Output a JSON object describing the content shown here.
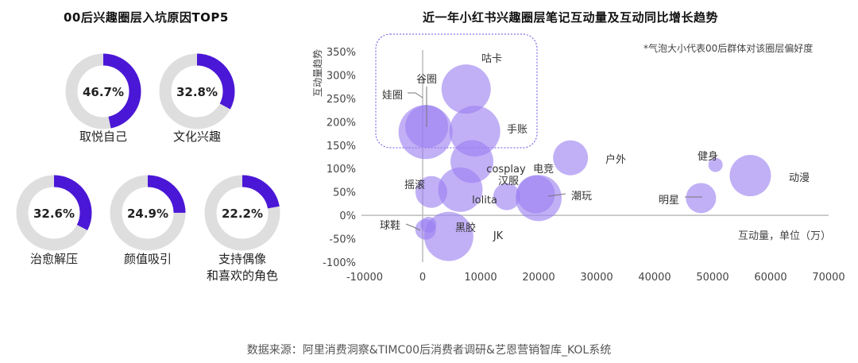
{
  "left_title": "00后兴趣圈层入坑原因TOP5",
  "donuts": [
    {
      "value": 46.7,
      "text": "46.7%",
      "label_lines": [
        "取悦自己"
      ]
    },
    {
      "value": 32.8,
      "text": "32.8%",
      "label_lines": [
        "文化兴趣"
      ]
    },
    {
      "value": 32.6,
      "text": "32.6%",
      "label_lines": [
        "治愈解压"
      ]
    },
    {
      "value": 24.9,
      "text": "24.9%",
      "label_lines": [
        "颜值吸引"
      ]
    },
    {
      "value": 22.2,
      "text": "22.2%",
      "label_lines": [
        "支持偶像",
        "和喜欢的角色"
      ]
    }
  ],
  "right_title": "近一年小红书兴趣圈层笔记互动量及互动同比增长趋势",
  "note": "*气泡大小代表00后群体对该圈层偏好度",
  "source": "数据来源：阿里消费洞察&TIMC00后消费者调研&艺恩营销智库_KOL系统",
  "colors": {
    "accent": "#4b17d6",
    "ring": "#dedede",
    "bubble": "#9b7ff0",
    "bubble_dark": "#6a4fe0"
  },
  "chart_data": {
    "type": "scatter",
    "title": "近一年小红书兴趣圈层笔记互动量及互动同比增长趋势",
    "xlabel": "互动量，单位（万）",
    "ylabel": "互动量趋势",
    "xlim": [
      -10000,
      70000
    ],
    "ylim": [
      -100,
      350
    ],
    "xticks": [
      -10000,
      0,
      10000,
      20000,
      30000,
      40000,
      50000,
      60000,
      70000
    ],
    "yticks": [
      -100,
      -50,
      0,
      50,
      100,
      150,
      200,
      250,
      300,
      350
    ],
    "xtick_labels": [
      "-10000",
      "0",
      "10000",
      "20000",
      "30000",
      "40000",
      "50000",
      "60000",
      "70000"
    ],
    "ytick_labels": [
      "-100%",
      "-50%",
      "0%",
      "50%",
      "100%",
      "150%",
      "200%",
      "250%",
      "300%",
      "350%"
    ],
    "points": [
      {
        "name": "咕卡",
        "x": 7500,
        "y": 270,
        "size": 31
      },
      {
        "name": "谷圈",
        "x": 700,
        "y": 190,
        "size": 27
      },
      {
        "name": "娃圈",
        "x": 500,
        "y": 178,
        "size": 34
      },
      {
        "name": "手账",
        "x": 9000,
        "y": 180,
        "size": 32
      },
      {
        "name": "cosplay",
        "x": 8500,
        "y": 115,
        "size": 27
      },
      {
        "name": "户外",
        "x": 25500,
        "y": 123,
        "size": 22
      },
      {
        "name": "健身",
        "x": 50500,
        "y": 108,
        "size": 9
      },
      {
        "name": "动漫",
        "x": 56500,
        "y": 85,
        "size": 26
      },
      {
        "name": "摇滚",
        "x": 1500,
        "y": 50,
        "size": 20
      },
      {
        "name": "lolita",
        "x": 6500,
        "y": 55,
        "size": 28
      },
      {
        "name": "汉服",
        "x": 14500,
        "y": 40,
        "size": 17
      },
      {
        "name": "电竞",
        "x": 19500,
        "y": 45,
        "size": 24
      },
      {
        "name": "潮玩",
        "x": 20000,
        "y": 37,
        "size": 29
      },
      {
        "name": "明星",
        "x": 48000,
        "y": 37,
        "size": 19
      },
      {
        "name": "球鞋",
        "x": 500,
        "y": -30,
        "size": 13
      },
      {
        "name": "黑胶",
        "x": 1000,
        "y": -20,
        "size": 10
      },
      {
        "name": "JK",
        "x": 4500,
        "y": -45,
        "size": 31
      }
    ]
  }
}
